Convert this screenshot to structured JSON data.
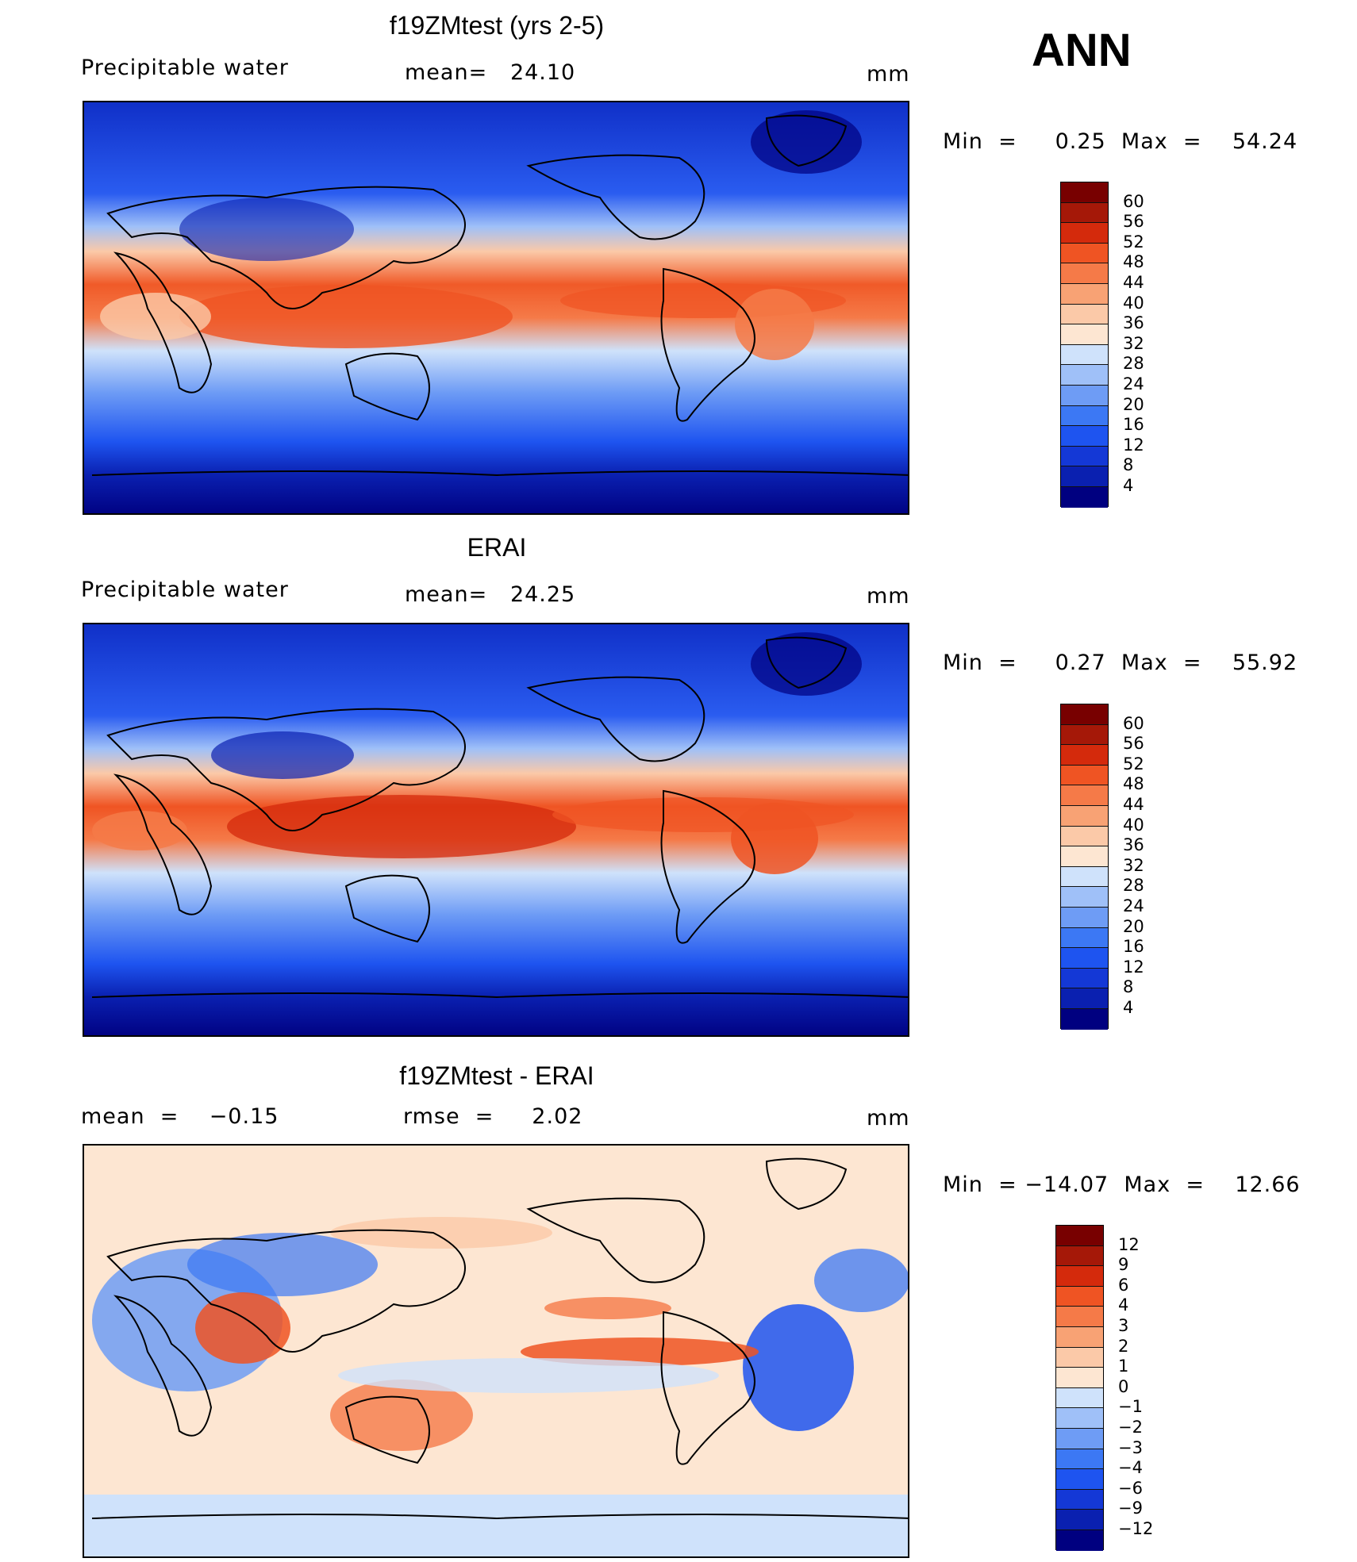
{
  "season": "ANN",
  "units": "mm",
  "variable": "Precipitable water",
  "colors": {
    "abs_scale": [
      "#000080",
      "#0a20b0",
      "#1438d6",
      "#1e54f0",
      "#3c78f4",
      "#6e9cf5",
      "#9fc0f8",
      "#cfe2fb",
      "#fde6d2",
      "#fbc9a8",
      "#f8a274",
      "#f57a48",
      "#ef5423",
      "#d42a0c",
      "#a51808",
      "#780000"
    ],
    "diff_scale": [
      "#000080",
      "#0a20b0",
      "#1438d6",
      "#1e54f0",
      "#3c78f4",
      "#6e9cf5",
      "#9fc0f8",
      "#cfe2fb",
      "#fde6d2",
      "#fbc9a8",
      "#f8a274",
      "#f57a48",
      "#ef5423",
      "#d42a0c",
      "#a51808",
      "#780000"
    ]
  },
  "panels": [
    {
      "title": "f19ZMtest (yrs 2-5)",
      "left_label": "Precipitable water",
      "mid_label": "mean=   24.10",
      "stats": "Min  =     0.25  Max  =    54.24",
      "colorbar_ticks": [
        "60",
        "56",
        "52",
        "48",
        "44",
        "40",
        "36",
        "32",
        "28",
        "24",
        "20",
        "16",
        "12",
        "8",
        "4"
      ]
    },
    {
      "title": "ERAI",
      "left_label": "Precipitable water",
      "mid_label": "mean=   24.25",
      "stats": "Min  =     0.27  Max  =    55.92",
      "colorbar_ticks": [
        "60",
        "56",
        "52",
        "48",
        "44",
        "40",
        "36",
        "32",
        "28",
        "24",
        "20",
        "16",
        "12",
        "8",
        "4"
      ]
    },
    {
      "title": "f19ZMtest - ERAI",
      "left_label": "mean  =    −0.15",
      "mid_label": "rmse  =     2.02",
      "stats": "Min  = −14.07  Max  =    12.66",
      "colorbar_ticks": [
        "12",
        "9",
        "6",
        "4",
        "3",
        "2",
        "1",
        "0",
        "−1",
        "−2",
        "−3",
        "−4",
        "−6",
        "−9",
        "−12"
      ]
    }
  ],
  "chart_data": [
    {
      "type": "heatmap",
      "title": "f19ZMtest (yrs 2-5)",
      "variable": "Precipitable water",
      "units": "mm",
      "mean": 24.1,
      "min": 0.25,
      "max": 54.24,
      "levels": [
        4,
        8,
        12,
        16,
        20,
        24,
        28,
        32,
        36,
        40,
        44,
        48,
        52,
        56,
        60
      ]
    },
    {
      "type": "heatmap",
      "title": "ERAI",
      "variable": "Precipitable water",
      "units": "mm",
      "mean": 24.25,
      "min": 0.27,
      "max": 55.92,
      "levels": [
        4,
        8,
        12,
        16,
        20,
        24,
        28,
        32,
        36,
        40,
        44,
        48,
        52,
        56,
        60
      ]
    },
    {
      "type": "heatmap",
      "title": "f19ZMtest - ERAI",
      "units": "mm",
      "mean": -0.15,
      "rmse": 2.02,
      "min": -14.07,
      "max": 12.66,
      "levels": [
        -12,
        -9,
        -6,
        -4,
        -3,
        -2,
        -1,
        0,
        1,
        2,
        3,
        4,
        6,
        9,
        12
      ]
    }
  ]
}
